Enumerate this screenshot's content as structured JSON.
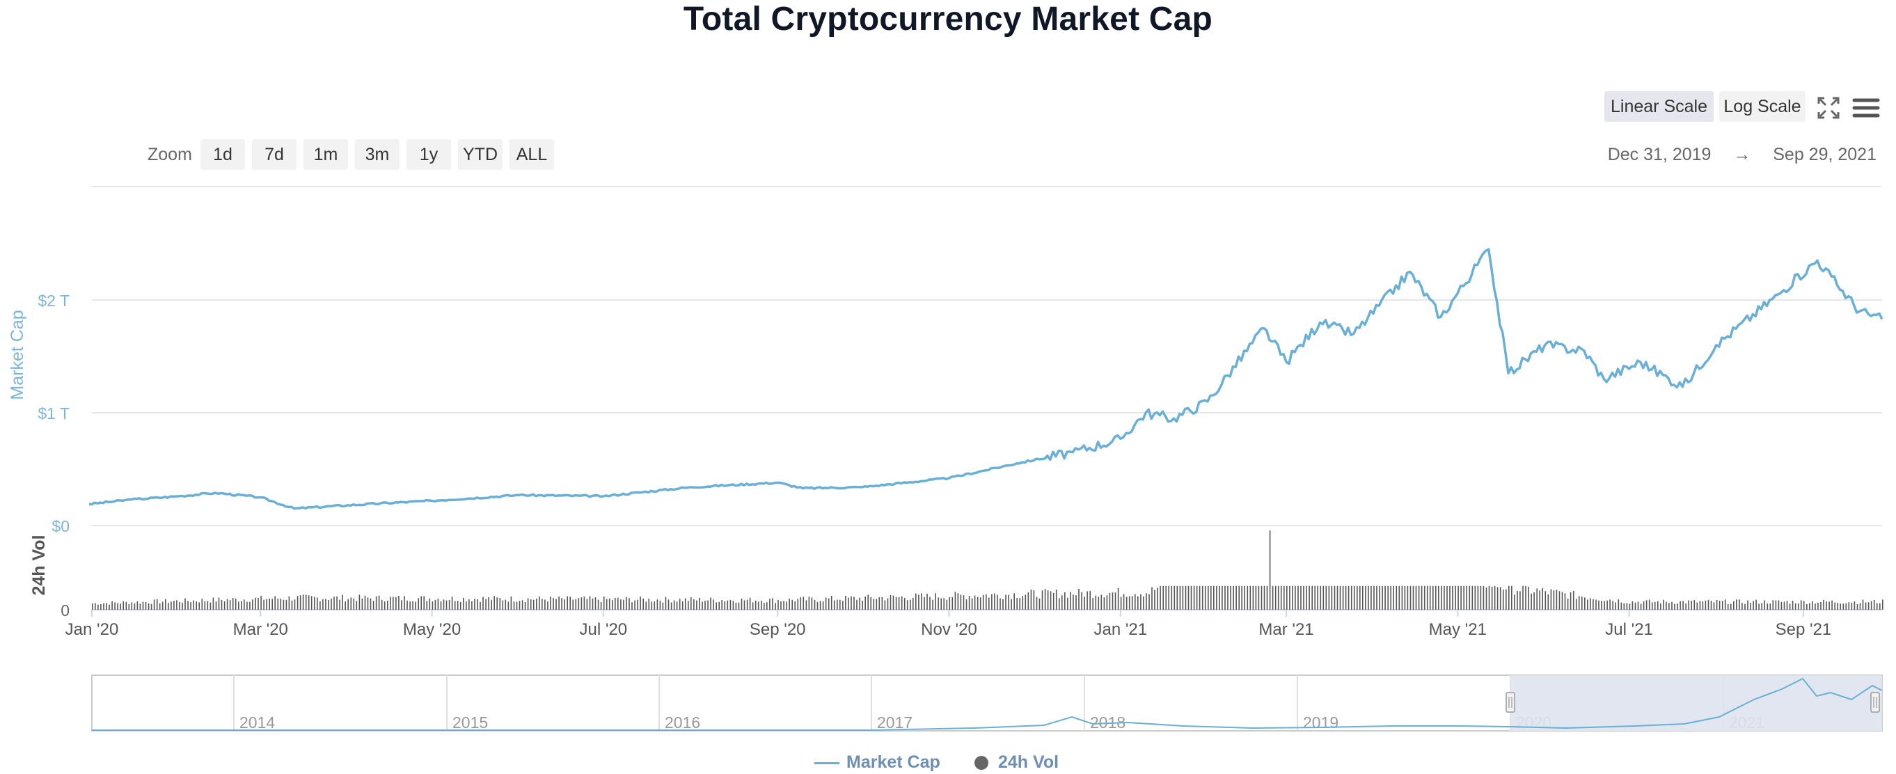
{
  "title": "Total Cryptocurrency Market Cap",
  "scale_buttons": [
    {
      "label": "Linear Scale",
      "active": true
    },
    {
      "label": "Log Scale",
      "active": false
    }
  ],
  "icons": {
    "fullscreen": "fullscreen-icon",
    "menu": "hamburger-menu-icon"
  },
  "zoom": {
    "label": "Zoom",
    "buttons": [
      "1d",
      "7d",
      "1m",
      "3m",
      "1y",
      "YTD",
      "ALL"
    ]
  },
  "date_range": {
    "from": "Dec 31, 2019",
    "arrow": "→",
    "to": "Sep 29, 2021"
  },
  "colors": {
    "market_cap": "#6aafd6",
    "volume": "#666666",
    "navigator_fill": "#dfe3ef",
    "axis_label": "#7cb5d9",
    "grid": "#e6e6e6"
  },
  "legend": [
    {
      "label": "Market Cap",
      "symbol": "line",
      "color": "#6aafd6"
    },
    {
      "label": "24h Vol",
      "symbol": "circle",
      "color": "#666666"
    }
  ],
  "chart_data": {
    "type": "line",
    "title": "Total Cryptocurrency Market Cap",
    "x_ticks": [
      "Jan '20",
      "Mar '20",
      "May '20",
      "Jul '20",
      "Sep '20",
      "Nov '20",
      "Jan '21",
      "Mar '21",
      "May '21",
      "Jul '21",
      "Sep '21"
    ],
    "y_axis": {
      "label": "Market Cap",
      "unit": "T USD",
      "ticks": [
        "$0",
        "$1 T",
        "$2 T"
      ],
      "range": [
        0,
        2.5
      ]
    },
    "volume_axis": {
      "label": "24h Vol",
      "ticks": [
        "0"
      ]
    },
    "series": [
      {
        "name": "Market Cap",
        "unit": "trillion USD",
        "points": [
          [
            "2019-12-31",
            0.19
          ],
          [
            "2020-01-15",
            0.23
          ],
          [
            "2020-02-01",
            0.26
          ],
          [
            "2020-02-14",
            0.29
          ],
          [
            "2020-03-01",
            0.25
          ],
          [
            "2020-03-13",
            0.15
          ],
          [
            "2020-04-01",
            0.18
          ],
          [
            "2020-05-01",
            0.22
          ],
          [
            "2020-06-01",
            0.27
          ],
          [
            "2020-07-01",
            0.26
          ],
          [
            "2020-08-01",
            0.34
          ],
          [
            "2020-09-01",
            0.38
          ],
          [
            "2020-09-10",
            0.33
          ],
          [
            "2020-10-01",
            0.34
          ],
          [
            "2020-11-01",
            0.42
          ],
          [
            "2020-11-25",
            0.55
          ],
          [
            "2020-12-15",
            0.65
          ],
          [
            "2021-01-01",
            0.77
          ],
          [
            "2021-01-10",
            1.0
          ],
          [
            "2021-01-20",
            0.95
          ],
          [
            "2021-02-01",
            1.1
          ],
          [
            "2021-02-21",
            1.75
          ],
          [
            "2021-03-01",
            1.45
          ],
          [
            "2021-03-13",
            1.8
          ],
          [
            "2021-03-25",
            1.7
          ],
          [
            "2021-04-14",
            2.25
          ],
          [
            "2021-04-25",
            1.85
          ],
          [
            "2021-05-12",
            2.45
          ],
          [
            "2021-05-19",
            1.35
          ],
          [
            "2021-06-01",
            1.6
          ],
          [
            "2021-06-15",
            1.55
          ],
          [
            "2021-06-22",
            1.3
          ],
          [
            "2021-07-05",
            1.45
          ],
          [
            "2021-07-20",
            1.23
          ],
          [
            "2021-08-01",
            1.6
          ],
          [
            "2021-08-23",
            2.05
          ],
          [
            "2021-09-06",
            2.35
          ],
          [
            "2021-09-21",
            1.9
          ],
          [
            "2021-09-29",
            1.83
          ]
        ]
      },
      {
        "name": "24h Vol",
        "unit": "relative",
        "note": "small bars, spike ~2021-02-23",
        "points": [
          [
            "2020-01-01",
            0.08
          ],
          [
            "2020-03-13",
            0.15
          ],
          [
            "2020-09-01",
            0.12
          ],
          [
            "2020-12-01",
            0.2
          ],
          [
            "2021-01-11",
            0.22
          ],
          [
            "2021-02-23",
            1.0
          ],
          [
            "2021-05-19",
            0.28
          ],
          [
            "2021-07-01",
            0.1
          ],
          [
            "2021-09-29",
            0.1
          ]
        ]
      }
    ],
    "navigator": {
      "x_ticks": [
        "2014",
        "2015",
        "2016",
        "2017",
        "2018",
        "2019",
        "2020",
        "2021"
      ],
      "selected_range": [
        "2019-12-31",
        "2021-09-29"
      ]
    },
    "grid": true,
    "legend_position": "bottom-center"
  }
}
